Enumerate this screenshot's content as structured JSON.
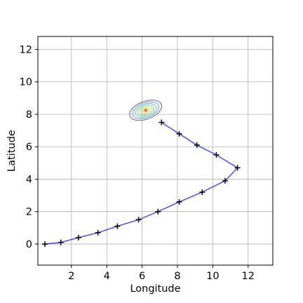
{
  "chart_data": {
    "type": "line",
    "title": "",
    "xlabel": "Longitude",
    "ylabel": "Latitude",
    "xlim": [
      0.1,
      13.4
    ],
    "ylim": [
      -1.3,
      12.8
    ],
    "x_ticks": [
      2,
      4,
      6,
      8,
      10,
      12
    ],
    "y_ticks": [
      0,
      2,
      4,
      6,
      8,
      10,
      12
    ],
    "grid": true,
    "series": [
      {
        "style": "line-with-plus-markers",
        "color": "#2020e0",
        "marker_color": "#000000",
        "points": [
          [
            0.5,
            0.0
          ],
          [
            1.4,
            0.1
          ],
          [
            2.4,
            0.4
          ],
          [
            3.5,
            0.7
          ],
          [
            4.6,
            1.1
          ],
          [
            5.8,
            1.5
          ],
          [
            6.9,
            2.0
          ],
          [
            8.1,
            2.6
          ],
          [
            9.4,
            3.2
          ],
          [
            10.7,
            3.9
          ],
          [
            11.4,
            4.7
          ],
          [
            10.2,
            5.5
          ],
          [
            9.1,
            6.1
          ],
          [
            8.1,
            6.8
          ],
          [
            7.1,
            7.5
          ]
        ]
      }
    ],
    "density_contours": {
      "center": [
        6.2,
        8.25
      ],
      "rotation_deg": 20,
      "levels": [
        {
          "rx": 0.95,
          "ry": 0.55,
          "color": "#7b7bb8"
        },
        {
          "rx": 0.78,
          "ry": 0.46,
          "color": "#8aa6cc"
        },
        {
          "rx": 0.62,
          "ry": 0.37,
          "color": "#7fc7c2"
        },
        {
          "rx": 0.47,
          "ry": 0.28,
          "color": "#8ed39a"
        },
        {
          "rx": 0.32,
          "ry": 0.19,
          "color": "#c8e07a"
        },
        {
          "rx": 0.17,
          "ry": 0.1,
          "color": "#f0c24a"
        }
      ],
      "peak_marker": {
        "x": 6.2,
        "y": 8.25,
        "color": "#e03a20"
      }
    }
  }
}
